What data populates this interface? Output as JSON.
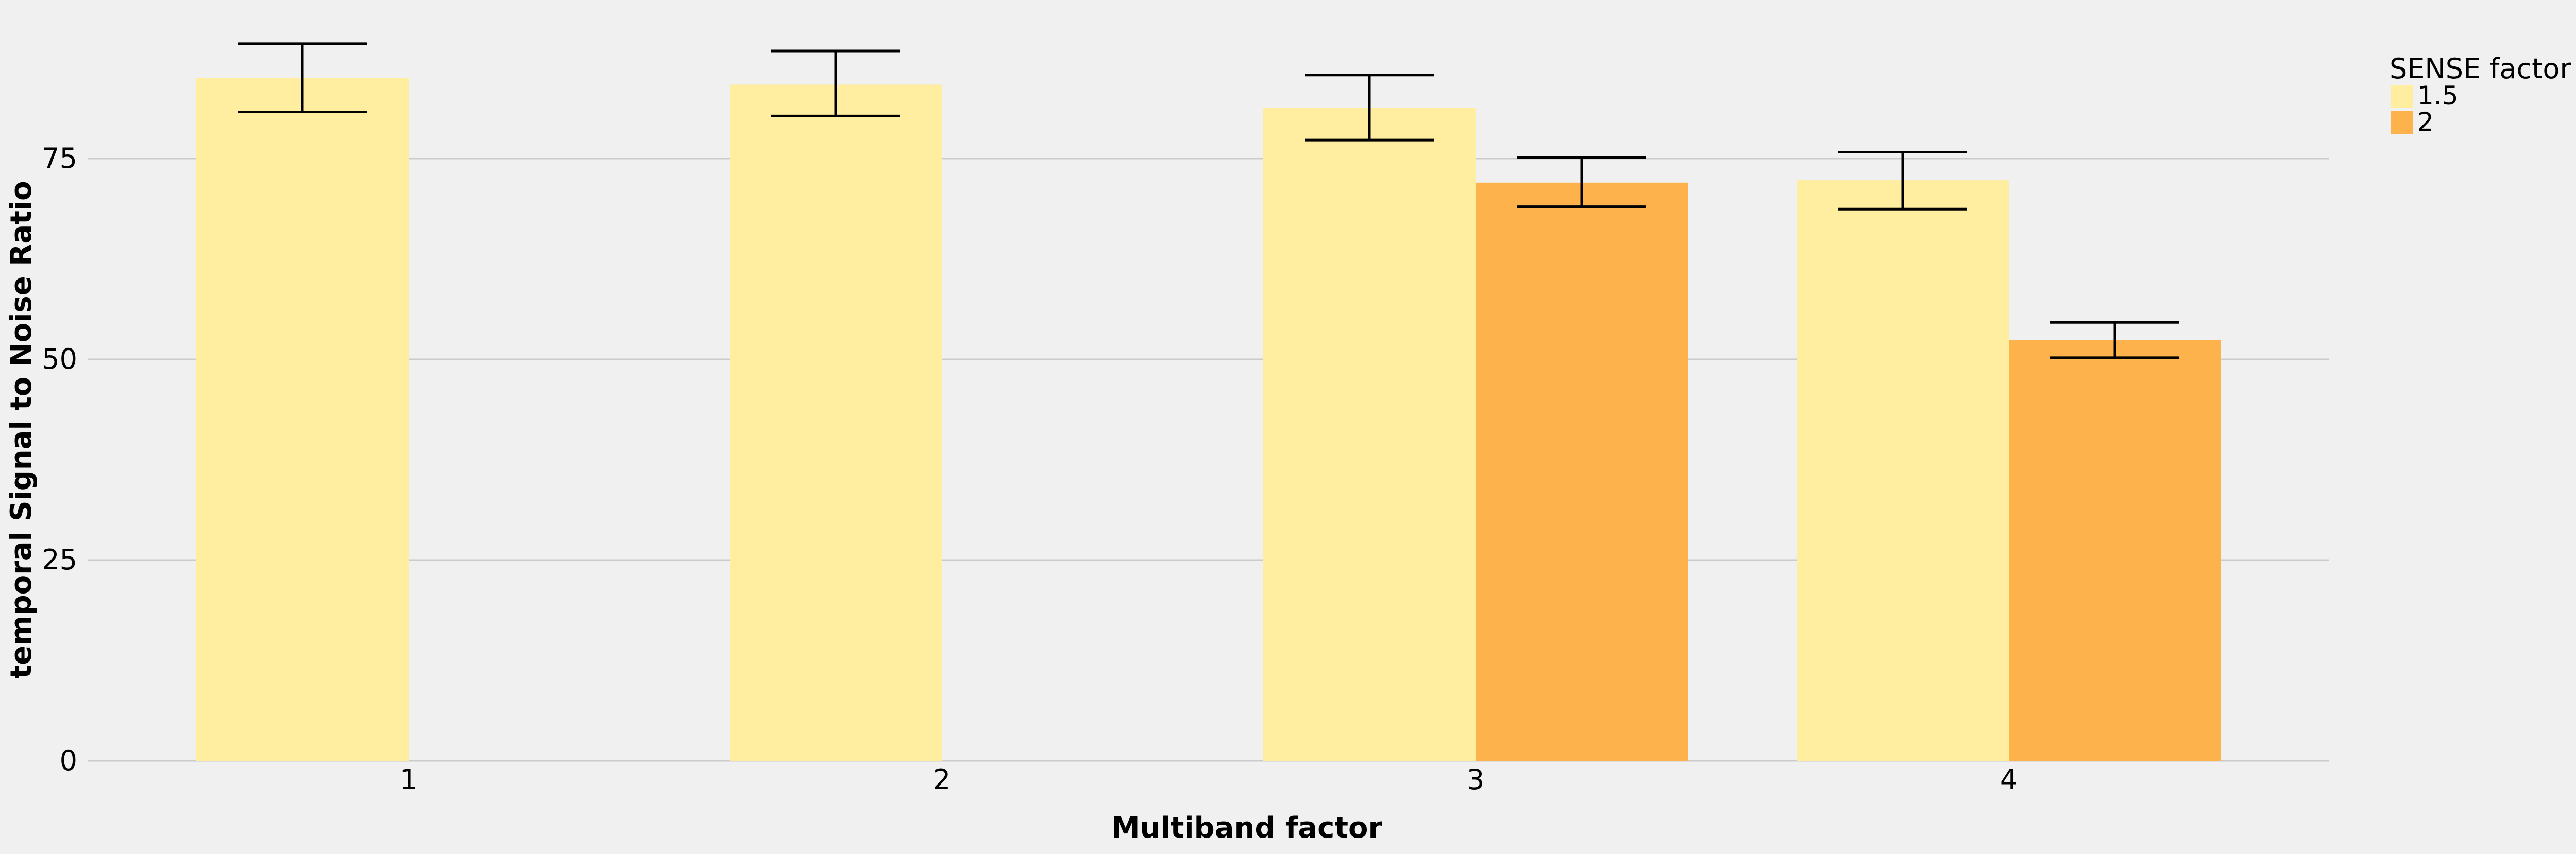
{
  "chart_data": {
    "type": "bar",
    "xlabel": "Multiband factor",
    "ylabel": "temporal Signal to Noise Ratio",
    "categories": [
      "1",
      "2",
      "3",
      "4"
    ],
    "yticks": [
      0,
      25,
      50,
      75
    ],
    "ylim": [
      0,
      90
    ],
    "grid": "horizontal",
    "legend": {
      "title": "SENSE factor",
      "position": "top-right",
      "entries": [
        "1.5",
        "2"
      ]
    },
    "series": [
      {
        "name": "1.5",
        "color": "#ffeda0",
        "values": [
          85,
          84.2,
          81.3,
          72.3
        ],
        "error_low": [
          80.8,
          80.3,
          77.3,
          68.7
        ],
        "error_high": [
          89.3,
          88.4,
          85.4,
          75.8
        ]
      },
      {
        "name": "2",
        "color": "#feb24c",
        "values": [
          null,
          null,
          72,
          52.4
        ],
        "error_low": [
          null,
          null,
          69,
          50.2
        ],
        "error_high": [
          null,
          null,
          75.1,
          54.6
        ]
      }
    ]
  }
}
